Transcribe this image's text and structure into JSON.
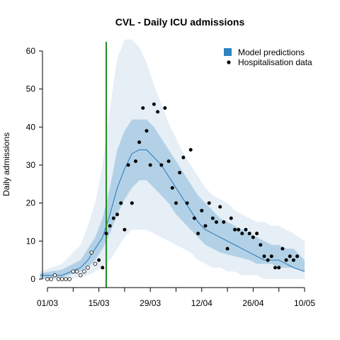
{
  "chart_data": {
    "type": "line",
    "title": "CVL - Daily ICU admissions",
    "xlabel": "",
    "ylabel": "Daily admissions",
    "xlim": [
      "2020-03-01",
      "2020-05-10"
    ],
    "ylim": [
      0,
      60
    ],
    "x_ticks": [
      "01/03",
      "15/03",
      "29/03",
      "12/04",
      "26/04",
      "10/05"
    ],
    "x_tick_dates": [
      "2020-03-01",
      "2020-03-15",
      "2020-03-29",
      "2020-04-12",
      "2020-04-26",
      "2020-05-10"
    ],
    "x_minor_tick_dates": [
      "2020-03-08",
      "2020-03-22",
      "2020-04-05",
      "2020-04-19",
      "2020-05-03"
    ],
    "y_ticks": [
      0,
      10,
      20,
      30,
      40,
      50,
      60
    ],
    "intervention_date": "2020-03-17",
    "legend": {
      "position": "top-right",
      "entries": [
        {
          "label": "Model predictions",
          "marker": "square"
        },
        {
          "label": "Hospitalisation data",
          "marker": "point"
        }
      ]
    },
    "colors": {
      "outer_band": "#e6eef6",
      "inner_band": "#b3d1e6",
      "median_line": "#3a86c3",
      "legend_square": "#2e82bf",
      "intervention_line": "#228b22",
      "points": "#000000"
    },
    "model_predictions": {
      "x": [
        "2020-02-28",
        "2020-03-05",
        "2020-03-10",
        "2020-03-12",
        "2020-03-14",
        "2020-03-16",
        "2020-03-18",
        "2020-03-20",
        "2020-03-22",
        "2020-03-24",
        "2020-03-26",
        "2020-03-28",
        "2020-03-30",
        "2020-04-01",
        "2020-04-03",
        "2020-04-05",
        "2020-04-07",
        "2020-04-09",
        "2020-04-11",
        "2020-04-13",
        "2020-04-15",
        "2020-04-17",
        "2020-04-19",
        "2020-04-21",
        "2020-04-23",
        "2020-04-25",
        "2020-04-27",
        "2020-04-29",
        "2020-05-01",
        "2020-05-03",
        "2020-05-05",
        "2020-05-07",
        "2020-05-10"
      ],
      "median": [
        1,
        1,
        3,
        5,
        8,
        11,
        17,
        24,
        29,
        33,
        34,
        34,
        32,
        30,
        27,
        24,
        21,
        18,
        15,
        13,
        12,
        11,
        10,
        9,
        8,
        7,
        6,
        5,
        5,
        5,
        4,
        3,
        2
      ],
      "inner_low": [
        0,
        0.5,
        2,
        3,
        5,
        8,
        12,
        17,
        21,
        24,
        26,
        26,
        24,
        22,
        20,
        17,
        15,
        13,
        11,
        9,
        8,
        7,
        6.5,
        6,
        5.5,
        5,
        4,
        4,
        4,
        3,
        3,
        3,
        2
      ],
      "inner_high": [
        1.5,
        2.5,
        5,
        8,
        11,
        16,
        24,
        34,
        39,
        42,
        42,
        42,
        40,
        37,
        34,
        31,
        28,
        25,
        22,
        20,
        18,
        16,
        15,
        14,
        13,
        12,
        11,
        10,
        9,
        9,
        8,
        8,
        5
      ],
      "outer_low": [
        0,
        0,
        0.5,
        1,
        2,
        3,
        5,
        8,
        11,
        13,
        13,
        13,
        12,
        11,
        10,
        9,
        8,
        7,
        5,
        4,
        3,
        3,
        2,
        2,
        1,
        1,
        1,
        0,
        0,
        0,
        0,
        0,
        0
      ],
      "outer_high": [
        2,
        4,
        9,
        14,
        20,
        30,
        45,
        58,
        63,
        63,
        61,
        57,
        51,
        46,
        41,
        37,
        33,
        30,
        27,
        24,
        22,
        21,
        20,
        18,
        17,
        16,
        15,
        15,
        14,
        14,
        13,
        12,
        10
      ]
    },
    "hospitalisation_data": {
      "x": [
        "2020-03-01",
        "2020-03-02",
        "2020-03-03",
        "2020-03-04",
        "2020-03-05",
        "2020-03-06",
        "2020-03-07",
        "2020-03-08",
        "2020-03-09",
        "2020-03-10",
        "2020-03-11",
        "2020-03-12",
        "2020-03-13",
        "2020-03-14",
        "2020-03-15",
        "2020-03-16",
        "2020-03-17",
        "2020-03-18",
        "2020-03-19",
        "2020-03-20",
        "2020-03-21",
        "2020-03-22",
        "2020-03-23",
        "2020-03-24",
        "2020-03-25",
        "2020-03-26",
        "2020-03-27",
        "2020-03-28",
        "2020-03-29",
        "2020-03-30",
        "2020-03-31",
        "2020-04-01",
        "2020-04-02",
        "2020-04-03",
        "2020-04-04",
        "2020-04-05",
        "2020-04-06",
        "2020-04-07",
        "2020-04-08",
        "2020-04-09",
        "2020-04-10",
        "2020-04-11",
        "2020-04-12",
        "2020-04-13",
        "2020-04-14",
        "2020-04-15",
        "2020-04-16",
        "2020-04-17",
        "2020-04-18",
        "2020-04-19",
        "2020-04-20",
        "2020-04-21",
        "2020-04-22",
        "2020-04-23",
        "2020-04-24",
        "2020-04-25",
        "2020-04-26",
        "2020-04-27",
        "2020-04-28",
        "2020-04-29",
        "2020-04-30",
        "2020-05-01",
        "2020-05-02",
        "2020-05-03",
        "2020-05-04",
        "2020-05-05",
        "2020-05-06",
        "2020-05-07",
        "2020-05-08"
      ],
      "y": [
        0,
        0,
        1,
        0,
        0,
        0,
        0,
        2,
        2,
        1,
        2,
        3,
        7,
        4,
        5,
        3,
        12,
        14,
        16,
        17,
        20,
        13,
        30,
        20,
        31,
        36,
        45,
        39,
        30,
        46,
        44,
        30,
        45,
        31,
        24,
        20,
        28,
        32,
        20,
        34,
        16,
        12,
        18,
        14,
        20,
        16,
        15,
        19,
        15,
        8,
        16,
        13,
        13,
        12,
        13,
        12,
        11,
        12,
        9,
        6,
        5,
        6,
        3,
        3,
        8,
        5,
        6,
        5,
        6
      ],
      "open_markers_through": "2020-03-14"
    }
  }
}
